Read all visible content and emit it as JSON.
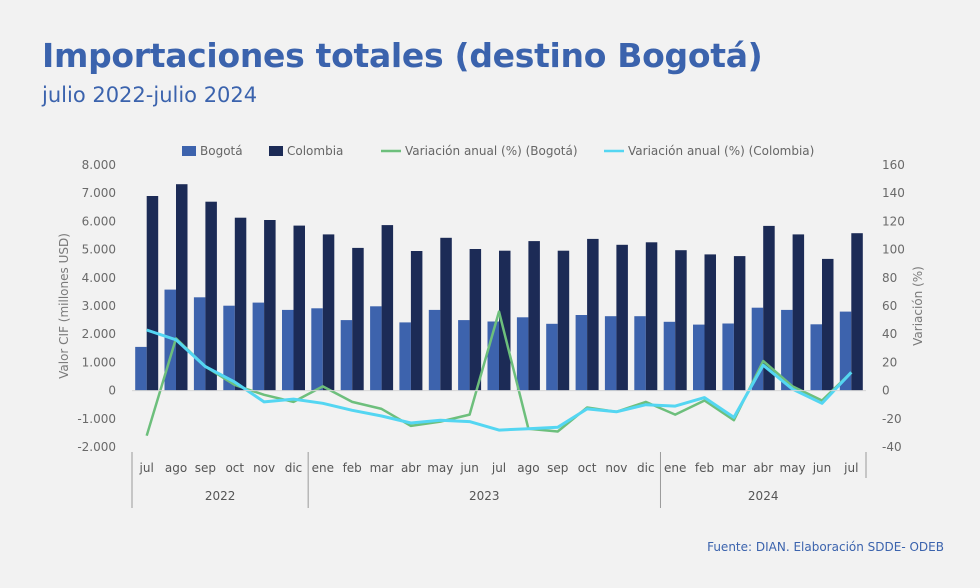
{
  "header": {
    "title": "Importaciones totales (destino Bogotá)",
    "subtitle": "julio 2022-julio 2024"
  },
  "footer": {
    "source": "Fuente: DIAN. Elaboración SDDE- ODEB"
  },
  "chart_data": {
    "type": "bar",
    "categories": [
      "jul",
      "ago",
      "sep",
      "oct",
      "nov",
      "dic",
      "ene",
      "feb",
      "mar",
      "abr",
      "may",
      "jun",
      "jul",
      "ago",
      "sep",
      "oct",
      "nov",
      "dic",
      "ene",
      "feb",
      "mar",
      "abr",
      "may",
      "jun",
      "jul"
    ],
    "year_groups": [
      {
        "label": "2022",
        "count": 6
      },
      {
        "label": "2023",
        "count": 12
      },
      {
        "label": "2024",
        "count": 7
      }
    ],
    "series": [
      {
        "name": "Bogotá",
        "kind": "bar",
        "axis": "left",
        "color": "#3d63ad",
        "values": [
          1550,
          3580,
          3310,
          3010,
          3120,
          2860,
          2920,
          2500,
          2990,
          2420,
          2860,
          2500,
          2450,
          2600,
          2370,
          2680,
          2640,
          2640,
          2440,
          2340,
          2380,
          2940,
          2860,
          2350,
          2800
        ]
      },
      {
        "name": "Colombia",
        "kind": "bar",
        "axis": "left",
        "color": "#1c2b56",
        "values": [
          6900,
          7320,
          6700,
          6130,
          6050,
          5850,
          5540,
          5060,
          5870,
          4950,
          5420,
          5020,
          4960,
          5300,
          4960,
          5380,
          5170,
          5260,
          4980,
          4830,
          4770,
          5840,
          5540,
          4670,
          5580
        ]
      },
      {
        "name": "Variación anual (%) (Bogotá)",
        "kind": "line",
        "axis": "right",
        "color": "#6dbf7c",
        "values": [
          -32,
          37,
          17,
          4,
          -3,
          -8,
          3,
          -8,
          -13,
          -25,
          -22,
          -17,
          56,
          -27,
          -29,
          -12,
          -15,
          -8,
          -17,
          -7,
          -21,
          21,
          3,
          -7,
          13
        ]
      },
      {
        "name": "Variación anual (%) (Colombia)",
        "kind": "line",
        "axis": "right",
        "color": "#54d6f2",
        "values": [
          43,
          36,
          17,
          6,
          -8,
          -6,
          -9,
          -14,
          -18,
          -23,
          -21,
          -22,
          -28,
          -27,
          -26,
          -13,
          -15,
          -10,
          -11,
          -5,
          -19,
          18,
          1,
          -9,
          13
        ]
      }
    ],
    "y_left": {
      "label": "Valor CIF (millones USD)",
      "min": -2000,
      "max": 8000,
      "step": 1000,
      "tick_labels": [
        "-2.000",
        "-1.000",
        "0",
        "1.000",
        "2.000",
        "3.000",
        "4.000",
        "5.000",
        "6.000",
        "7.000",
        "8.000"
      ]
    },
    "y_right": {
      "label": "Variación (%)",
      "min": -40,
      "max": 160,
      "step": 20,
      "tick_labels": [
        "-40",
        "-20",
        "0",
        "20",
        "40",
        "60",
        "80",
        "100",
        "120",
        "140",
        "160"
      ]
    },
    "grid": false,
    "legend_position": "top"
  }
}
